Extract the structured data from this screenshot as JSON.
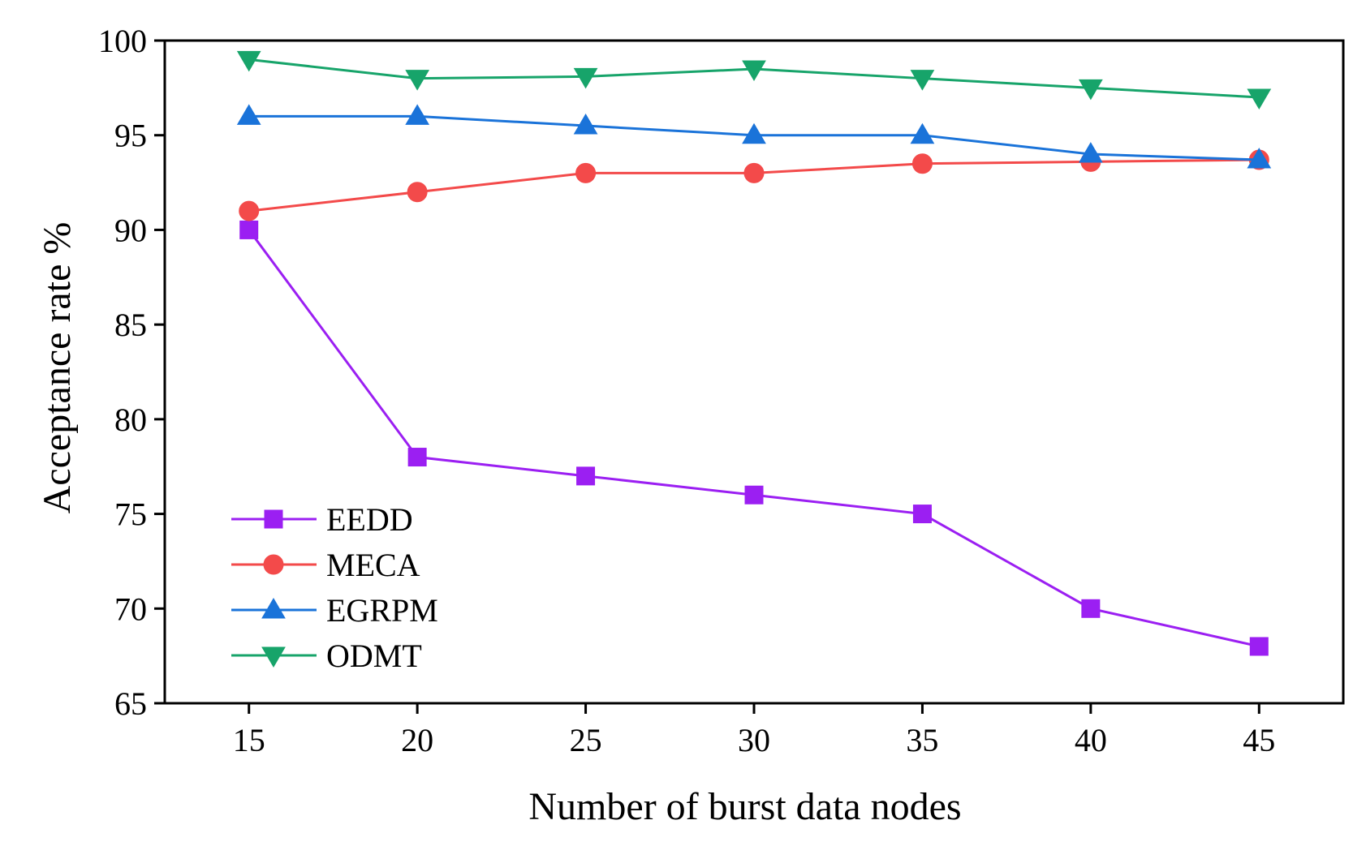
{
  "chart_data": {
    "type": "line",
    "title": "",
    "xlabel": "Number of burst data nodes",
    "ylabel": "Acceptance rate %",
    "x": [
      15,
      20,
      25,
      30,
      35,
      40,
      45
    ],
    "xticks": [
      "15",
      "20",
      "25",
      "30",
      "35",
      "40",
      "45"
    ],
    "yticks": [
      "65",
      "70",
      "75",
      "80",
      "85",
      "90",
      "95",
      "100"
    ],
    "xlim": [
      12.5,
      47.5
    ],
    "ylim": [
      65,
      100
    ],
    "grid": false,
    "legend_position": "bottom-left",
    "series": [
      {
        "name": "EEDD",
        "color": "#9b1ff2",
        "marker": "square",
        "values": [
          90,
          78,
          77,
          76,
          75,
          70,
          68
        ]
      },
      {
        "name": "MECA",
        "color": "#f34a4a",
        "marker": "circle",
        "values": [
          91,
          92,
          93,
          93,
          93.5,
          93.6,
          93.7
        ]
      },
      {
        "name": "EGRPM",
        "color": "#1a73d9",
        "marker": "triangle-up",
        "values": [
          96,
          96,
          95.5,
          95,
          95,
          94,
          93.7
        ]
      },
      {
        "name": "ODMT",
        "color": "#17a46a",
        "marker": "triangle-down",
        "values": [
          99,
          98,
          98.1,
          98.5,
          98,
          97.5,
          97
        ]
      }
    ]
  }
}
